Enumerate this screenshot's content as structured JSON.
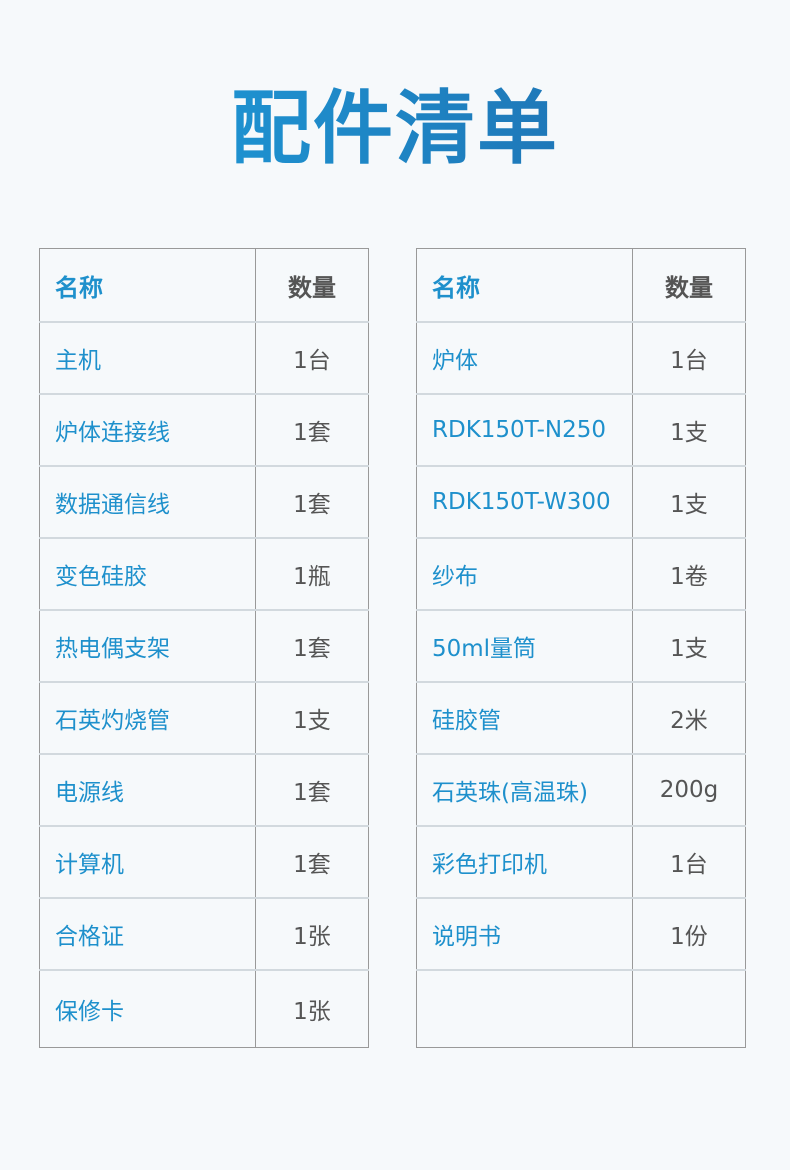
{
  "title": "配件清单",
  "header": {
    "name": "名称",
    "qty": "数量"
  },
  "left": [
    {
      "name": "主机",
      "qty": "1台"
    },
    {
      "name": "炉体连接线",
      "qty": "1套"
    },
    {
      "name": "数据通信线",
      "qty": "1套"
    },
    {
      "name": "变色硅胶",
      "qty": "1瓶"
    },
    {
      "name": "热电偶支架",
      "qty": "1套"
    },
    {
      "name": "石英灼烧管",
      "qty": "1支"
    },
    {
      "name": "电源线",
      "qty": "1套"
    },
    {
      "name": "计算机",
      "qty": "1套"
    },
    {
      "name": "合格证",
      "qty": "1张"
    },
    {
      "name": "保修卡",
      "qty": "1张"
    }
  ],
  "right": [
    {
      "name": "炉体",
      "qty": "1台"
    },
    {
      "name": "RDK150T-N250",
      "qty": "1支"
    },
    {
      "name": "RDK150T-W300",
      "qty": "1支"
    },
    {
      "name": "纱布",
      "qty": "1卷"
    },
    {
      "name": "50ml量筒",
      "qty": "1支"
    },
    {
      "name": "硅胶管",
      "qty": "2米"
    },
    {
      "name": "石英珠(高温珠)",
      "qty": "200g"
    },
    {
      "name": "彩色打印机",
      "qty": "1台"
    },
    {
      "name": "说明书",
      "qty": "1份"
    },
    {
      "name": "",
      "qty": ""
    }
  ],
  "colors": {
    "accent": "#1e90cc",
    "title_gradient": [
      "#1ea3e0",
      "#1f66a8"
    ],
    "background": "#f6f9fb"
  }
}
